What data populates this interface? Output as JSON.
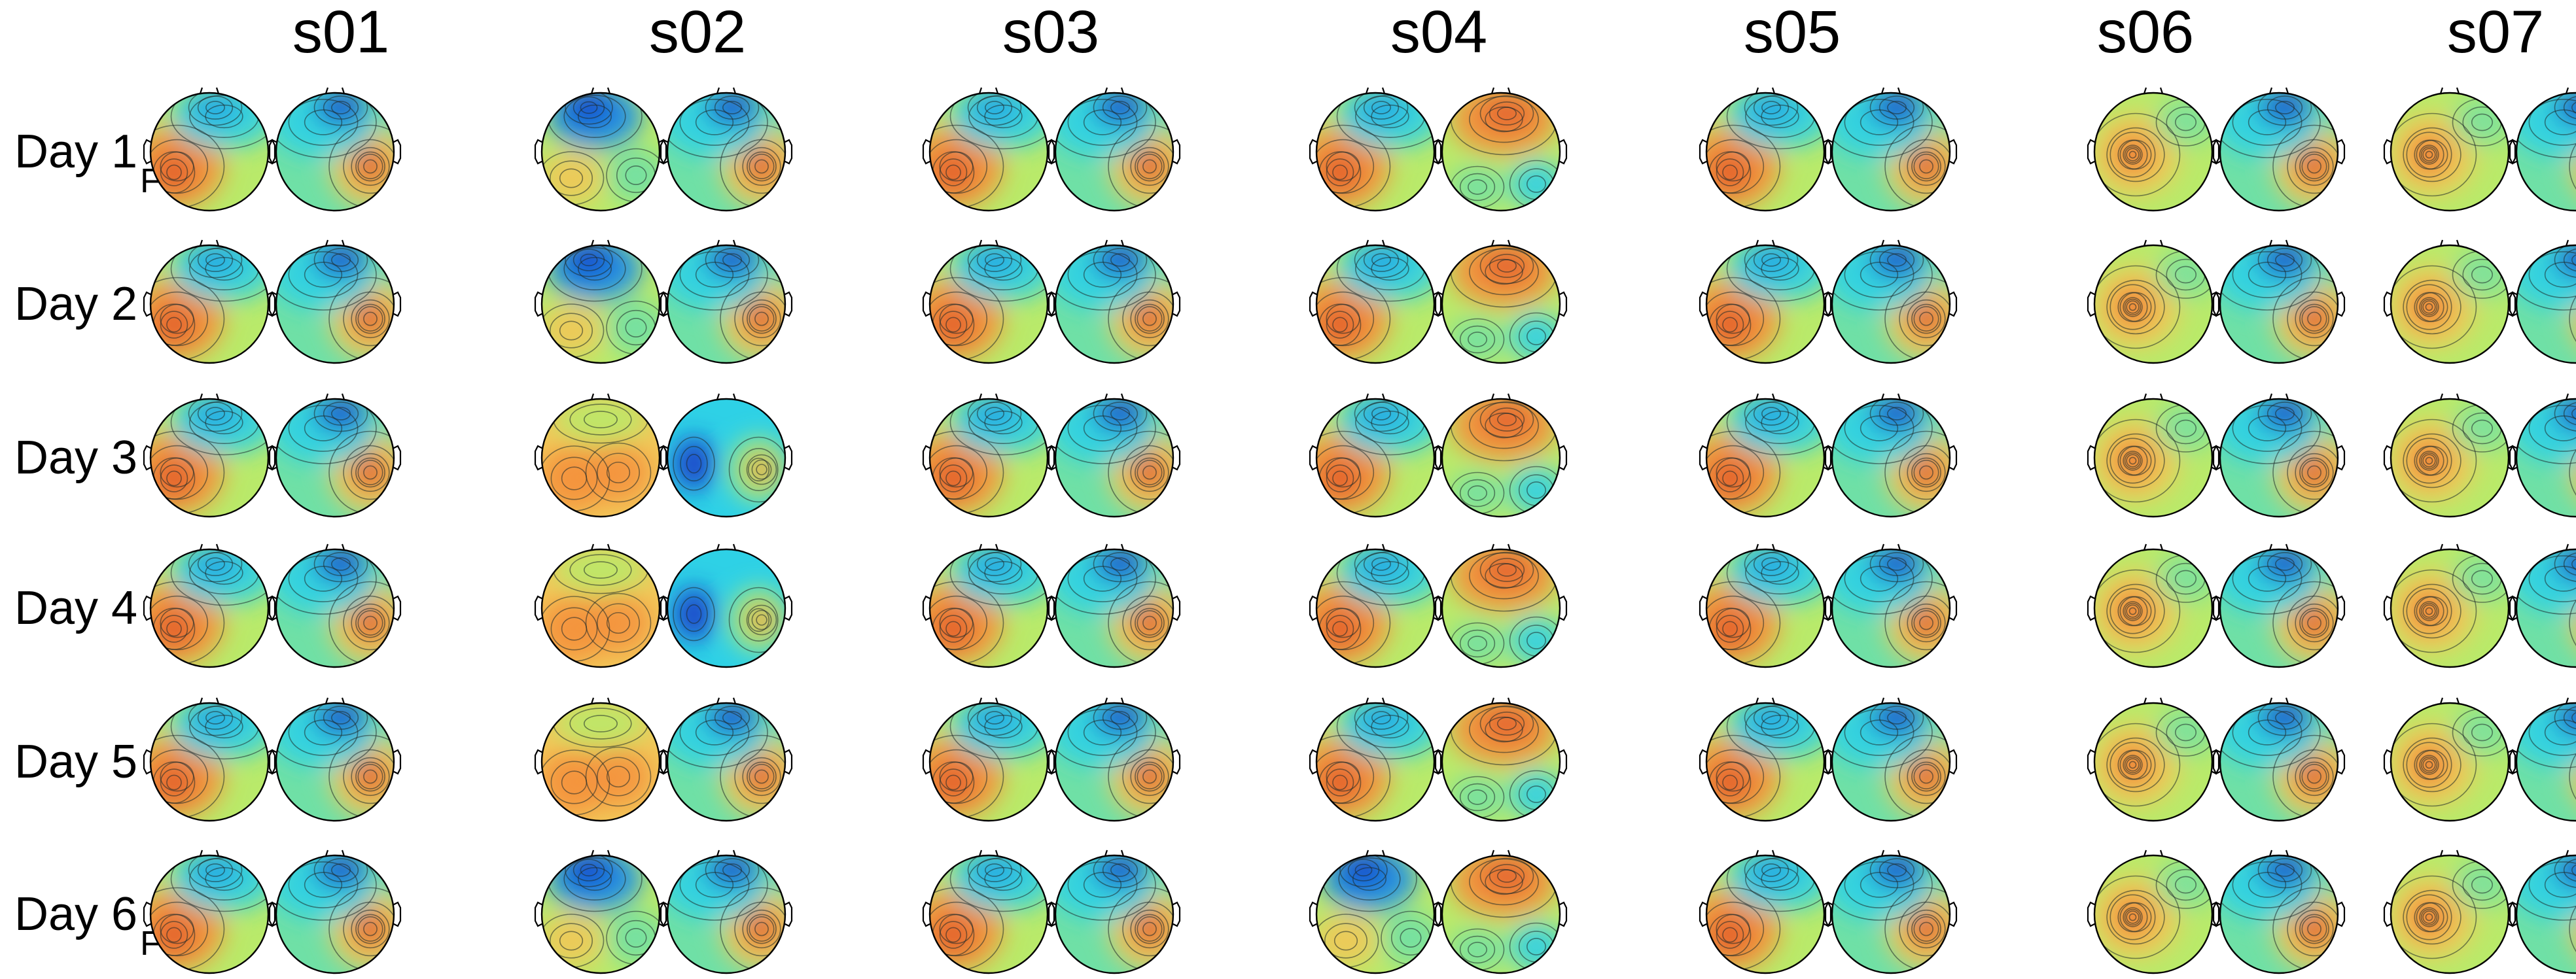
{
  "columns": [
    "s01",
    "s02",
    "s03",
    "s04",
    "s05",
    "s06",
    "s07"
  ],
  "rows": [
    {
      "label": "Day 1",
      "subscript": "F"
    },
    {
      "label": "Day 2",
      "subscript": ""
    },
    {
      "label": "Day 3",
      "subscript": ""
    },
    {
      "label": "Day 4",
      "subscript": ""
    },
    {
      "label": "Day 5",
      "subscript": ""
    },
    {
      "label": "Day 6",
      "subscript": "F"
    }
  ],
  "colormap": [
    "#1636c8",
    "#1f8fe8",
    "#2ed1e6",
    "#6fe0a6",
    "#b9ea6a",
    "#f2c758",
    "#f4923d",
    "#e0552a"
  ],
  "topomaps": {
    "s01": [
      [
        "L",
        "R"
      ],
      [
        "L",
        "R"
      ],
      [
        "L",
        "R"
      ],
      [
        "L",
        "R"
      ],
      [
        "L",
        "R"
      ],
      [
        "L",
        "R"
      ]
    ],
    "s02": [
      [
        "B",
        "R"
      ],
      [
        "B",
        "R"
      ],
      [
        "M",
        "N"
      ],
      [
        "M",
        "N"
      ],
      [
        "M",
        "R"
      ],
      [
        "B",
        "R"
      ]
    ],
    "s03": [
      [
        "L",
        "R"
      ],
      [
        "L",
        "R"
      ],
      [
        "L",
        "R"
      ],
      [
        "L",
        "R"
      ],
      [
        "L",
        "R"
      ],
      [
        "L",
        "R"
      ]
    ],
    "s04": [
      [
        "L",
        "T"
      ],
      [
        "L",
        "T"
      ],
      [
        "L",
        "T"
      ],
      [
        "L",
        "T"
      ],
      [
        "L",
        "T"
      ],
      [
        "B",
        "T"
      ]
    ],
    "s05": [
      [
        "L",
        "R"
      ],
      [
        "L",
        "R"
      ],
      [
        "L",
        "R"
      ],
      [
        "L",
        "R"
      ],
      [
        "L",
        "R"
      ],
      [
        "L",
        "R"
      ]
    ],
    "s06": [
      [
        "C",
        "R"
      ],
      [
        "C",
        "R"
      ],
      [
        "C",
        "R"
      ],
      [
        "C",
        "R"
      ],
      [
        "C",
        "R"
      ],
      [
        "C",
        "R"
      ]
    ],
    "s07": [
      [
        "C",
        "R"
      ],
      [
        "C",
        "R"
      ],
      [
        "C",
        "R"
      ],
      [
        "C",
        "R"
      ],
      [
        "C",
        "R"
      ],
      [
        "C",
        "R"
      ]
    ]
  }
}
